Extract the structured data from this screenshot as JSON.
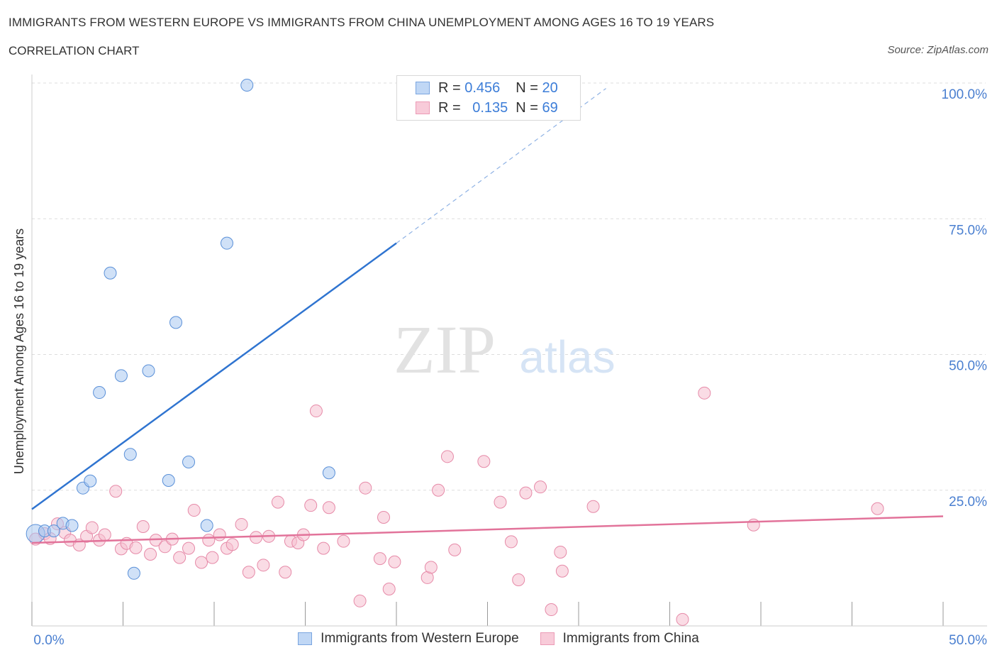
{
  "header": {
    "title": "IMMIGRANTS FROM WESTERN EUROPE VS IMMIGRANTS FROM CHINA UNEMPLOYMENT AMONG AGES 16 TO 19 YEARS",
    "subtitle": "CORRELATION CHART",
    "source": "Source: ZipAtlas.com"
  },
  "legend": {
    "series1": {
      "r_label": "R =",
      "r_value": "0.456",
      "n_label": "N =",
      "n_value": "20"
    },
    "series2": {
      "r_label": "R =",
      "r_value": "0.135",
      "n_label": "N =",
      "n_value": "69"
    }
  },
  "watermark": {
    "zip": "ZIP",
    "atlas": "atlas"
  },
  "colors": {
    "blue_fill": "#a9c8f0",
    "blue_stroke": "#5a90d8",
    "blue_line": "#2f74d0",
    "pink_fill": "#f6bfd0",
    "pink_stroke": "#e68aa8",
    "pink_line": "#e2739a",
    "axis_label": "#4a7fd0",
    "grid": "#dddddd"
  },
  "chart_data": {
    "type": "scatter",
    "title": "IMMIGRANTS FROM WESTERN EUROPE VS IMMIGRANTS FROM CHINA UNEMPLOYMENT AMONG AGES 16 TO 19 YEARS",
    "xlabel": "",
    "ylabel": "Unemployment Among Ages 16 to 19 years",
    "xlim": [
      0,
      50
    ],
    "ylim": [
      0,
      100
    ],
    "x_tick_labels": [
      "0.0%",
      "50.0%"
    ],
    "y_ticks": [
      25,
      50,
      75,
      100
    ],
    "y_tick_labels": [
      "25.0%",
      "50.0%",
      "75.0%",
      "100.0%"
    ],
    "series": [
      {
        "name": "Immigrants from Western Europe",
        "color": "#a9c8f0",
        "trend": {
          "x0": 0,
          "y0": 21.5,
          "x1": 20,
          "y1": 70.5,
          "dash_to_x": 31.5,
          "dash_to_y": 99
        },
        "points": [
          {
            "x": 0.2,
            "y": 17.0
          },
          {
            "x": 0.7,
            "y": 17.5
          },
          {
            "x": 1.2,
            "y": 17.5
          },
          {
            "x": 1.7,
            "y": 18.9
          },
          {
            "x": 2.2,
            "y": 18.5
          },
          {
            "x": 2.8,
            "y": 25.4
          },
          {
            "x": 3.2,
            "y": 26.7
          },
          {
            "x": 3.7,
            "y": 43.0
          },
          {
            "x": 4.3,
            "y": 65.0
          },
          {
            "x": 4.9,
            "y": 46.1
          },
          {
            "x": 5.4,
            "y": 31.6
          },
          {
            "x": 5.6,
            "y": 9.7
          },
          {
            "x": 6.4,
            "y": 47.0
          },
          {
            "x": 7.5,
            "y": 26.8
          },
          {
            "x": 7.9,
            "y": 55.9
          },
          {
            "x": 8.6,
            "y": 30.2
          },
          {
            "x": 9.6,
            "y": 18.5
          },
          {
            "x": 10.7,
            "y": 70.5
          },
          {
            "x": 11.8,
            "y": 99.6
          },
          {
            "x": 16.3,
            "y": 28.2
          }
        ]
      },
      {
        "name": "Immigrants from China",
        "color": "#f6bfd0",
        "trend": {
          "x0": 0,
          "y0": 15.3,
          "x1": 50,
          "y1": 20.2
        },
        "points": [
          {
            "x": 0.2,
            "y": 16.0
          },
          {
            "x": 0.7,
            "y": 17.0
          },
          {
            "x": 1.0,
            "y": 16.1
          },
          {
            "x": 1.4,
            "y": 18.8
          },
          {
            "x": 1.8,
            "y": 17.2
          },
          {
            "x": 2.1,
            "y": 15.8
          },
          {
            "x": 2.6,
            "y": 14.9
          },
          {
            "x": 3.0,
            "y": 16.5
          },
          {
            "x": 3.3,
            "y": 18.1
          },
          {
            "x": 3.7,
            "y": 15.8
          },
          {
            "x": 4.0,
            "y": 16.8
          },
          {
            "x": 4.6,
            "y": 24.8
          },
          {
            "x": 4.9,
            "y": 14.2
          },
          {
            "x": 5.2,
            "y": 15.2
          },
          {
            "x": 5.7,
            "y": 14.4
          },
          {
            "x": 6.1,
            "y": 18.3
          },
          {
            "x": 6.5,
            "y": 13.2
          },
          {
            "x": 6.8,
            "y": 15.8
          },
          {
            "x": 7.3,
            "y": 14.6
          },
          {
            "x": 7.7,
            "y": 16.0
          },
          {
            "x": 8.1,
            "y": 12.6
          },
          {
            "x": 8.6,
            "y": 14.3
          },
          {
            "x": 8.9,
            "y": 21.3
          },
          {
            "x": 9.3,
            "y": 11.7
          },
          {
            "x": 9.7,
            "y": 15.8
          },
          {
            "x": 9.9,
            "y": 12.6
          },
          {
            "x": 10.3,
            "y": 16.8
          },
          {
            "x": 10.7,
            "y": 14.3
          },
          {
            "x": 11.0,
            "y": 15.0
          },
          {
            "x": 11.5,
            "y": 18.7
          },
          {
            "x": 11.9,
            "y": 9.9
          },
          {
            "x": 12.3,
            "y": 16.3
          },
          {
            "x": 12.7,
            "y": 11.2
          },
          {
            "x": 13.0,
            "y": 16.5
          },
          {
            "x": 13.5,
            "y": 22.8
          },
          {
            "x": 13.9,
            "y": 9.9
          },
          {
            "x": 14.2,
            "y": 15.6
          },
          {
            "x": 14.6,
            "y": 15.3
          },
          {
            "x": 14.9,
            "y": 16.8
          },
          {
            "x": 15.3,
            "y": 22.2
          },
          {
            "x": 15.6,
            "y": 39.6
          },
          {
            "x": 16.0,
            "y": 14.3
          },
          {
            "x": 16.3,
            "y": 21.8
          },
          {
            "x": 17.1,
            "y": 15.6
          },
          {
            "x": 18.0,
            "y": 4.6
          },
          {
            "x": 18.3,
            "y": 25.4
          },
          {
            "x": 19.1,
            "y": 12.4
          },
          {
            "x": 19.3,
            "y": 20.0
          },
          {
            "x": 19.6,
            "y": 6.8
          },
          {
            "x": 19.9,
            "y": 11.8
          },
          {
            "x": 21.7,
            "y": 8.9
          },
          {
            "x": 21.9,
            "y": 10.8
          },
          {
            "x": 22.3,
            "y": 25.0
          },
          {
            "x": 22.8,
            "y": 31.2
          },
          {
            "x": 23.2,
            "y": 14.0
          },
          {
            "x": 24.8,
            "y": 30.3
          },
          {
            "x": 25.7,
            "y": 22.8
          },
          {
            "x": 26.3,
            "y": 15.5
          },
          {
            "x": 26.7,
            "y": 8.5
          },
          {
            "x": 27.1,
            "y": 24.5
          },
          {
            "x": 27.9,
            "y": 25.6
          },
          {
            "x": 28.5,
            "y": 3.0
          },
          {
            "x": 29.0,
            "y": 13.6
          },
          {
            "x": 29.1,
            "y": 10.1
          },
          {
            "x": 30.8,
            "y": 22.0
          },
          {
            "x": 36.9,
            "y": 42.9
          },
          {
            "x": 35.7,
            "y": 1.2
          },
          {
            "x": 39.6,
            "y": 18.6
          },
          {
            "x": 46.4,
            "y": 21.6
          }
        ]
      }
    ]
  },
  "bottom_legend": {
    "series1_label": "Immigrants from Western Europe",
    "series2_label": "Immigrants from China"
  }
}
